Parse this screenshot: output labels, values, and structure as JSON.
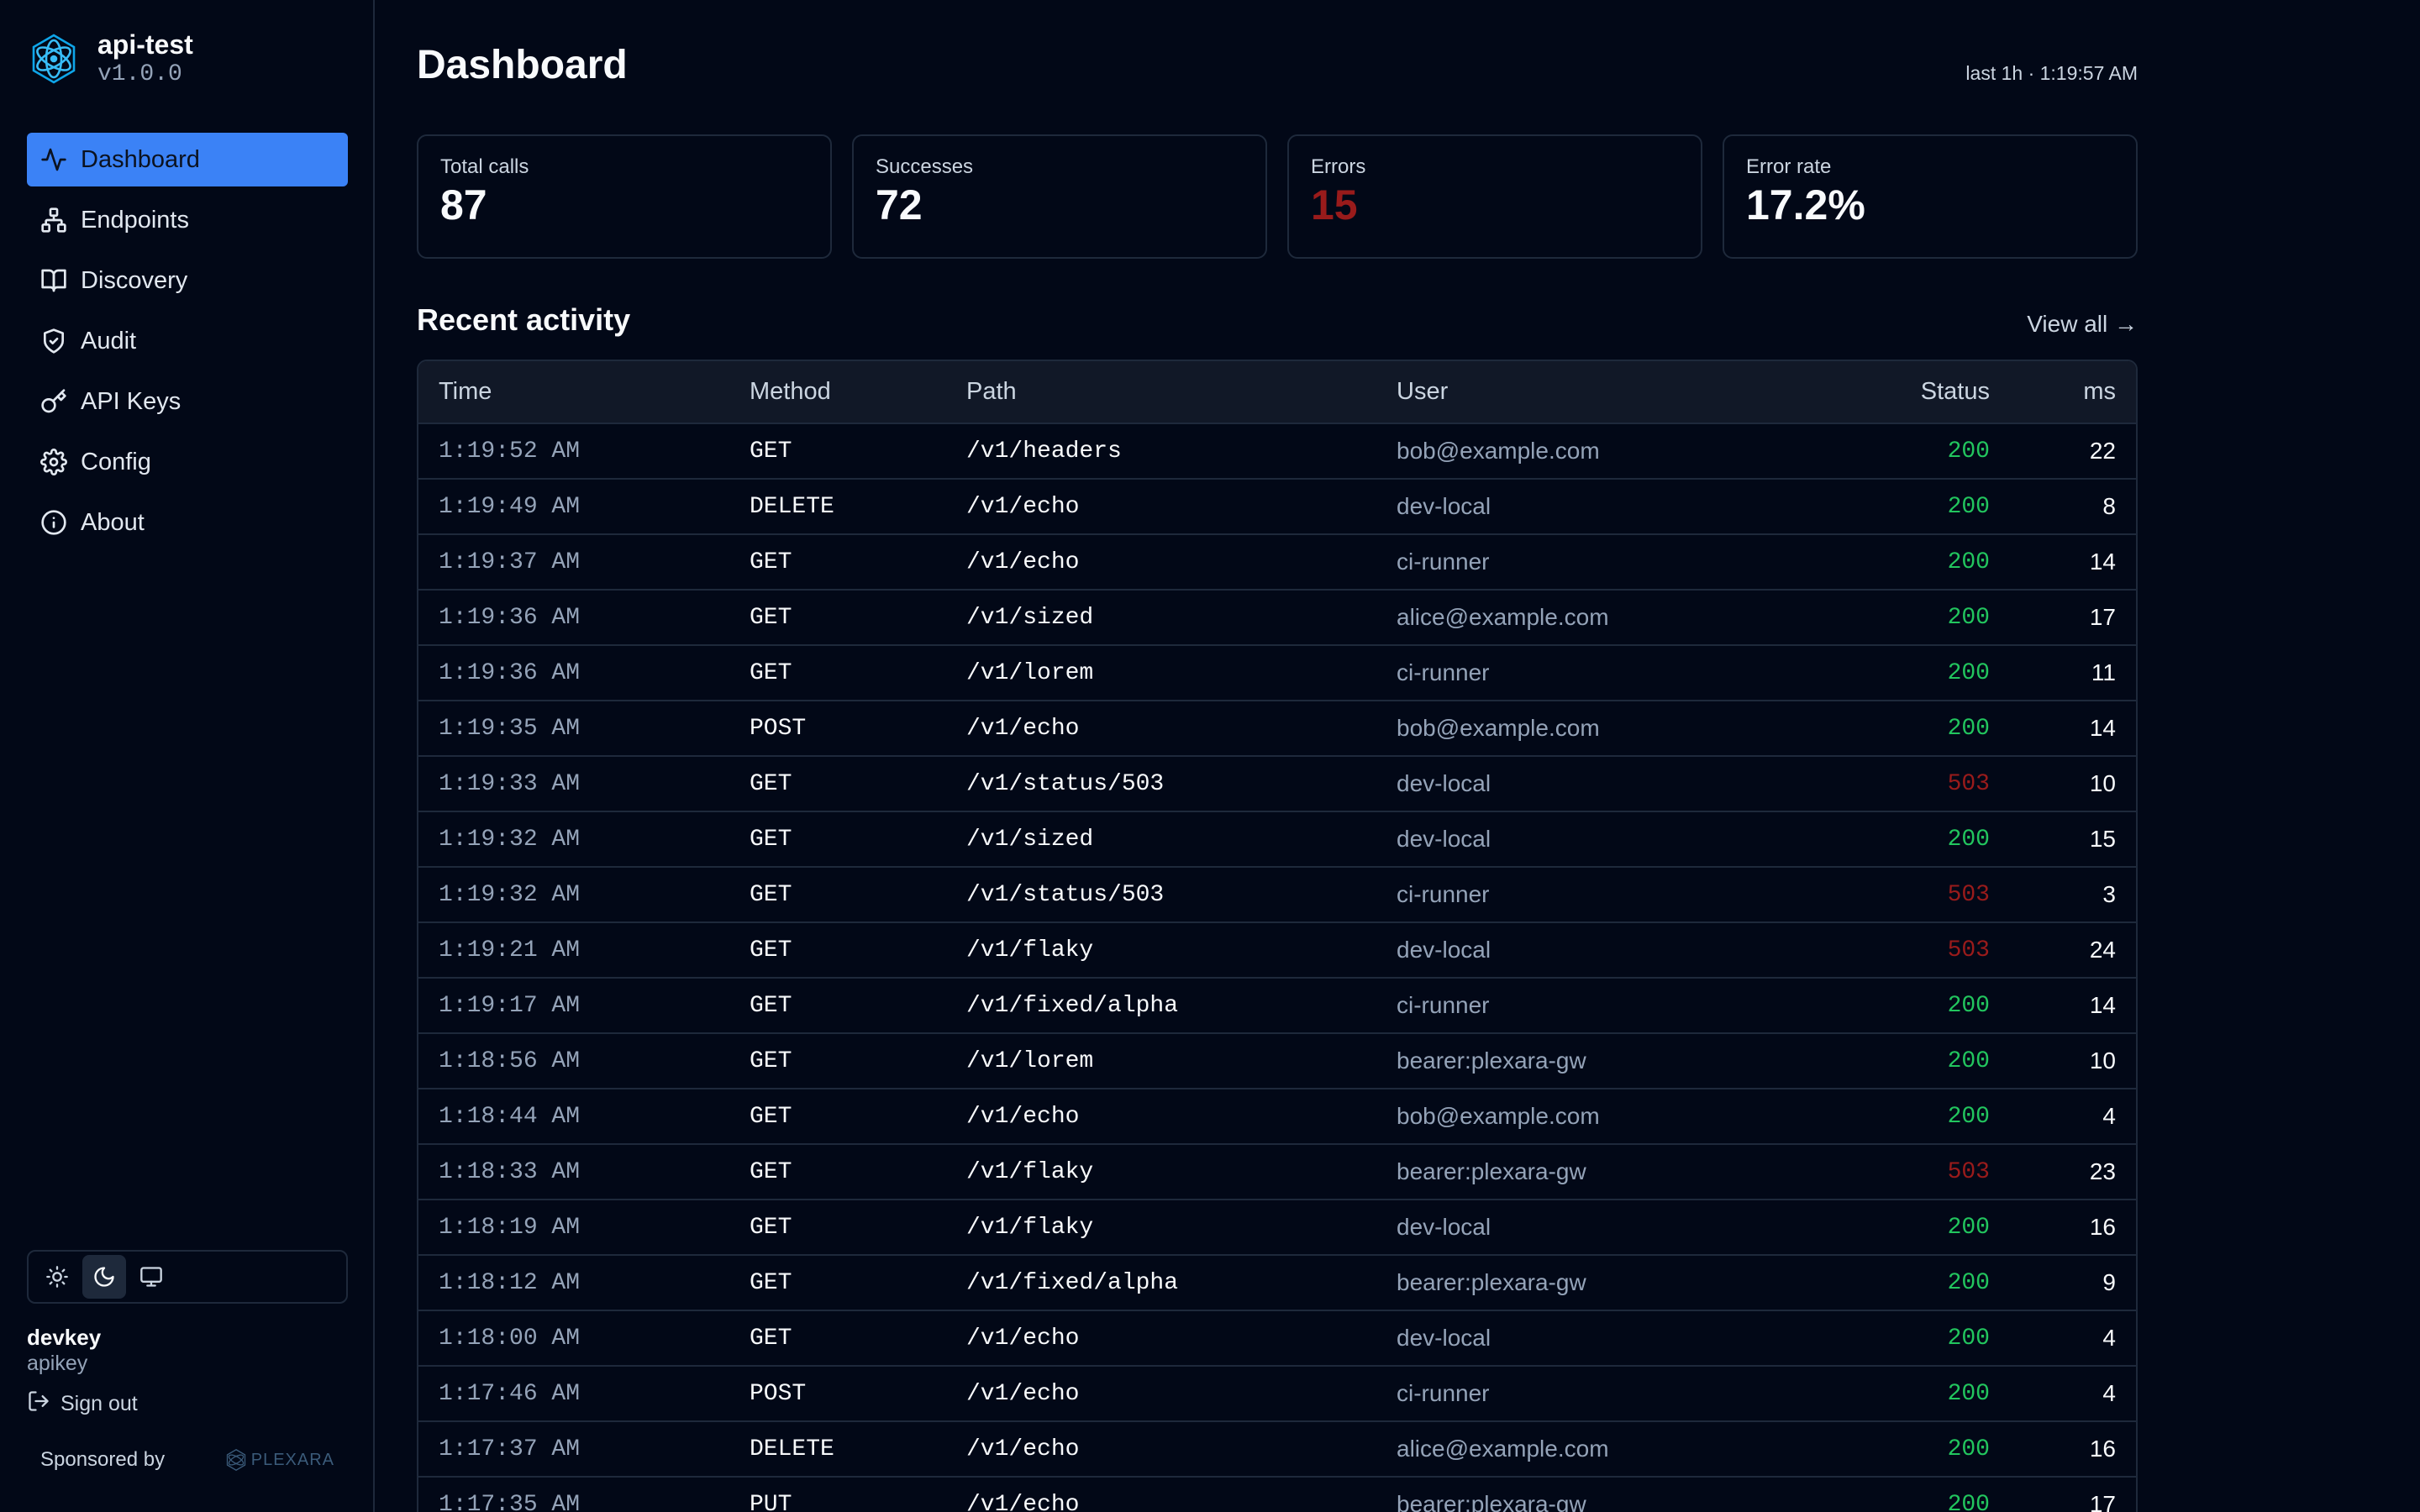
{
  "app": {
    "name": "api-test",
    "version": "v1.0.0"
  },
  "nav": [
    {
      "label": "Dashboard",
      "icon": "activity-icon",
      "active": true
    },
    {
      "label": "Endpoints",
      "icon": "network-icon",
      "active": false
    },
    {
      "label": "Discovery",
      "icon": "book-icon",
      "active": false
    },
    {
      "label": "Audit",
      "icon": "shield-icon",
      "active": false
    },
    {
      "label": "API Keys",
      "icon": "key-icon",
      "active": false
    },
    {
      "label": "Config",
      "icon": "gear-icon",
      "active": false
    },
    {
      "label": "About",
      "icon": "info-icon",
      "active": false
    }
  ],
  "theme": {
    "options": [
      "sun-icon",
      "moon-icon",
      "monitor-icon"
    ],
    "selected": "moon-icon"
  },
  "account": {
    "name": "devkey",
    "type": "apikey",
    "signout_label": "Sign out"
  },
  "sponsor": {
    "label": "Sponsored by",
    "brand": "PLEXARA"
  },
  "header": {
    "title": "Dashboard",
    "last_updated": "last 1h · 1:19:57 AM"
  },
  "stats": [
    {
      "label": "Total calls",
      "value": "87",
      "kind": "normal"
    },
    {
      "label": "Successes",
      "value": "72",
      "kind": "normal"
    },
    {
      "label": "Errors",
      "value": "15",
      "kind": "error"
    },
    {
      "label": "Error rate",
      "value": "17.2%",
      "kind": "normal"
    }
  ],
  "recent": {
    "title": "Recent activity",
    "view_all": "View all →",
    "columns": [
      "Time",
      "Method",
      "Path",
      "User",
      "Status",
      "ms"
    ],
    "rows": [
      [
        "1:19:52 AM",
        "GET",
        "/v1/headers",
        "bob@example.com",
        "200",
        "22"
      ],
      [
        "1:19:49 AM",
        "DELETE",
        "/v1/echo",
        "dev-local",
        "200",
        "8"
      ],
      [
        "1:19:37 AM",
        "GET",
        "/v1/echo",
        "ci-runner",
        "200",
        "14"
      ],
      [
        "1:19:36 AM",
        "GET",
        "/v1/sized",
        "alice@example.com",
        "200",
        "17"
      ],
      [
        "1:19:36 AM",
        "GET",
        "/v1/lorem",
        "ci-runner",
        "200",
        "11"
      ],
      [
        "1:19:35 AM",
        "POST",
        "/v1/echo",
        "bob@example.com",
        "200",
        "14"
      ],
      [
        "1:19:33 AM",
        "GET",
        "/v1/status/503",
        "dev-local",
        "503",
        "10"
      ],
      [
        "1:19:32 AM",
        "GET",
        "/v1/sized",
        "dev-local",
        "200",
        "15"
      ],
      [
        "1:19:32 AM",
        "GET",
        "/v1/status/503",
        "ci-runner",
        "503",
        "3"
      ],
      [
        "1:19:21 AM",
        "GET",
        "/v1/flaky",
        "dev-local",
        "503",
        "24"
      ],
      [
        "1:19:17 AM",
        "GET",
        "/v1/fixed/alpha",
        "ci-runner",
        "200",
        "14"
      ],
      [
        "1:18:56 AM",
        "GET",
        "/v1/lorem",
        "bearer:plexara-gw",
        "200",
        "10"
      ],
      [
        "1:18:44 AM",
        "GET",
        "/v1/echo",
        "bob@example.com",
        "200",
        "4"
      ],
      [
        "1:18:33 AM",
        "GET",
        "/v1/flaky",
        "bearer:plexara-gw",
        "503",
        "23"
      ],
      [
        "1:18:19 AM",
        "GET",
        "/v1/flaky",
        "dev-local",
        "200",
        "16"
      ],
      [
        "1:18:12 AM",
        "GET",
        "/v1/fixed/alpha",
        "bearer:plexara-gw",
        "200",
        "9"
      ],
      [
        "1:18:00 AM",
        "GET",
        "/v1/echo",
        "dev-local",
        "200",
        "4"
      ],
      [
        "1:17:46 AM",
        "POST",
        "/v1/echo",
        "ci-runner",
        "200",
        "4"
      ],
      [
        "1:17:37 AM",
        "DELETE",
        "/v1/echo",
        "alice@example.com",
        "200",
        "16"
      ],
      [
        "1:17:35 AM",
        "PUT",
        "/v1/echo",
        "bearer:plexara-gw",
        "200",
        "17"
      ]
    ]
  },
  "colors": {
    "accent": "#3b82f6",
    "success": "#22c55e",
    "error": "#991b1b",
    "background": "#020817",
    "border": "#1e293b"
  }
}
